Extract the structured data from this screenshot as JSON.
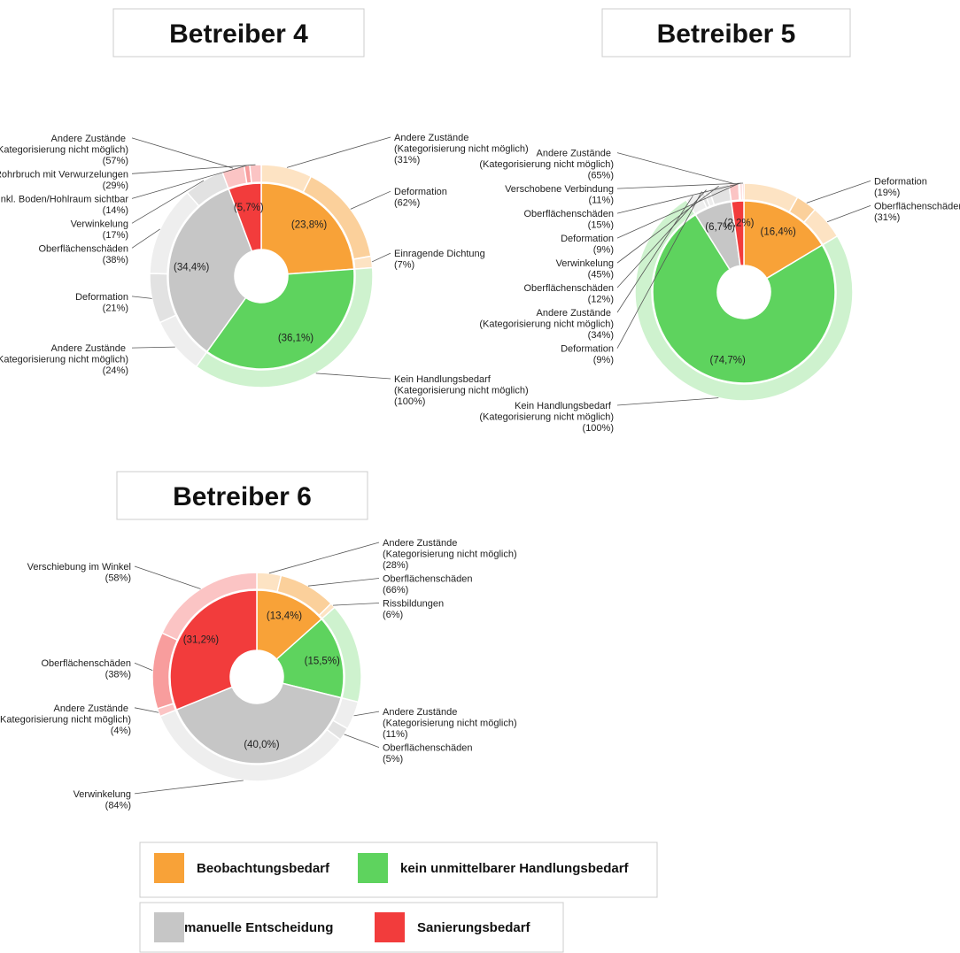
{
  "legend": [
    {
      "name": "Beobachtungsbedarf",
      "color": "#f8a238"
    },
    {
      "name": "kein unmittelbarer Handlungsbedarf",
      "color": "#5ed35e"
    },
    {
      "name": "manuelle Entscheidung",
      "color": "#c6c6c6"
    },
    {
      "name": "Sanierungsbedarf",
      "color": "#f23c3c"
    }
  ],
  "chart_data": [
    {
      "type": "sunburst",
      "title": "Betreiber 4",
      "values": [
        23.8,
        36.1,
        34.4,
        5.7
      ],
      "value_labels": [
        "(23,8%)",
        "(36,1%)",
        "(34,4%)",
        "(5,7%)"
      ],
      "outer": [
        [
          {
            "name": "Andere Zustände (Kategorisierung nicht möglich)",
            "value": 31,
            "value_label": "(31%)"
          },
          {
            "name": "Deformation",
            "value": 62,
            "value_label": "(62%)"
          },
          {
            "name": "Einragende Dichtung",
            "value": 7,
            "value_label": "(7%)"
          }
        ],
        [
          {
            "name": "Kein Handlungsbedarf (Kategorisierung nicht möglich)",
            "value": 100,
            "value_label": "(100%)"
          }
        ],
        [
          {
            "name": "Andere Zustände (Kategorisierung nicht möglich)",
            "value": 24,
            "value_label": "(24%)"
          },
          {
            "name": "Deformation",
            "value": 21,
            "value_label": "(21%)"
          },
          {
            "name": "Oberflächenschäden",
            "value": 38,
            "value_label": "(38%)"
          },
          {
            "name": "Verwinkelung",
            "value": 17,
            "value_label": "(17%)"
          }
        ],
        [
          {
            "name": "Andere Zustände (Kategorisierung nicht möglich)",
            "value": 57,
            "value_label": "(57%)"
          },
          {
            "name": "Schadhafte Anschlüsse inkl. Boden/Hohlraum sichtbar",
            "value": 14,
            "value_label": "(14%)"
          },
          {
            "name": "Rohrbruch mit Verwurzelungen",
            "value": 29,
            "value_label": "(29%)"
          }
        ]
      ]
    },
    {
      "type": "sunburst",
      "title": "Betreiber 5",
      "values": [
        16.4,
        74.7,
        6.7,
        2.2
      ],
      "value_labels": [
        "(16,4%)",
        "(74,7%)",
        "(6,7%)",
        "(2,2%)"
      ],
      "outer": [
        [
          {
            "name": null,
            "value": 50,
            "value_label": null
          },
          {
            "name": "Deformation",
            "value": 19,
            "value_label": "(19%)"
          },
          {
            "name": "Oberflächenschäden",
            "value": 31,
            "value_label": "(31%)"
          }
        ],
        [
          {
            "name": "Kein Handlungsbedarf (Kategorisierung nicht möglich)",
            "value": 100,
            "value_label": "(100%)"
          }
        ],
        [
          {
            "name": "Andere Zustände (Kategorisierung nicht möglich)",
            "value": 34,
            "value_label": "(34%)"
          },
          {
            "name": "Deformation",
            "value": 9,
            "value_label": "(9%)"
          },
          {
            "name": "Oberflächenschäden",
            "value": 12,
            "value_label": "(12%)"
          },
          {
            "name": "Verwinkelung",
            "value": 45,
            "value_label": "(45%)"
          }
        ],
        [
          {
            "name": "Andere Zustände (Kategorisierung nicht möglich)",
            "value": 65,
            "value_label": "(65%)"
          },
          {
            "name": "Deformation",
            "value": 9,
            "value_label": "(9%)"
          },
          {
            "name": "Oberflächenschäden",
            "value": 15,
            "value_label": "(15%)"
          },
          {
            "name": "Verschobene Verbindung",
            "value": 11,
            "value_label": "(11%)"
          }
        ]
      ]
    },
    {
      "type": "sunburst",
      "title": "Betreiber 6",
      "values": [
        13.4,
        15.5,
        40.0,
        31.2
      ],
      "value_labels": [
        "(13,4%)",
        "(15,5%)",
        "(40,0%)",
        "(31,2%)"
      ],
      "outer": [
        [
          {
            "name": "Andere Zustände (Kategorisierung nicht möglich)",
            "value": 28,
            "value_label": "(28%)"
          },
          {
            "name": "Oberflächenschäden",
            "value": 66,
            "value_label": "(66%)"
          },
          {
            "name": "Rissbildungen",
            "value": 6,
            "value_label": "(6%)"
          }
        ],
        [
          {
            "name": null,
            "value": 100,
            "value_label": null
          }
        ],
        [
          {
            "name": "Andere Zustände (Kategorisierung nicht möglich)",
            "value": 11,
            "value_label": "(11%)"
          },
          {
            "name": "Oberflächenschäden",
            "value": 5,
            "value_label": "(5%)"
          },
          {
            "name": "Verwinkelung",
            "value": 84,
            "value_label": "(84%)"
          }
        ],
        [
          {
            "name": "Andere Zustände (Kategorisierung nicht möglich)",
            "value": 4,
            "value_label": "(4%)"
          },
          {
            "name": "Oberflächenschäden",
            "value": 38,
            "value_label": "(38%)"
          },
          {
            "name": "Verschiebung im Winkel",
            "value": 58,
            "value_label": "(58%)"
          }
        ]
      ]
    }
  ]
}
